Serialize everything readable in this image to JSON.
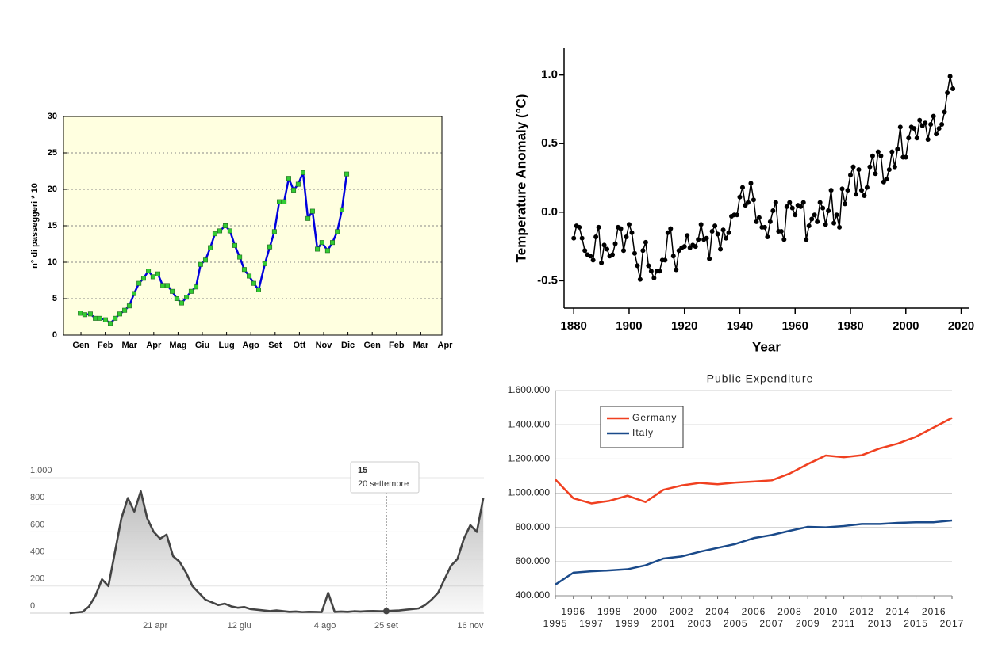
{
  "chart_data": [
    {
      "type": "line",
      "ylabel": "n° di passeggeri * 10",
      "x": [
        -0.03,
        0.16,
        0.39,
        0.59,
        0.78,
        1.01,
        1.21,
        1.41,
        1.6,
        1.8,
        1.99,
        2.19,
        2.39,
        2.58,
        2.78,
        2.97,
        3.17,
        3.37,
        3.56,
        3.76,
        3.95,
        4.15,
        4.35,
        4.54,
        4.74,
        4.93,
        5.13,
        5.33,
        5.52,
        5.72,
        5.95,
        6.14,
        6.34,
        6.54,
        6.73,
        6.93,
        7.12,
        7.32,
        7.58,
        7.78,
        7.97,
        8.17,
        8.37,
        8.56,
        8.76,
        8.95,
        9.15,
        9.35,
        9.54,
        9.74,
        9.93,
        10.16,
        10.36,
        10.56,
        10.75,
        10.95
      ],
      "values": [
        3.0,
        2.8,
        2.9,
        2.3,
        2.3,
        2.1,
        1.6,
        2.3,
        2.9,
        3.4,
        4.0,
        5.7,
        7.1,
        7.8,
        8.8,
        8.0,
        8.4,
        6.8,
        6.8,
        6.0,
        5.0,
        4.4,
        5.2,
        6.0,
        6.6,
        9.7,
        10.3,
        12.0,
        13.9,
        14.3,
        15.0,
        14.3,
        12.3,
        10.7,
        9.0,
        8.1,
        7.1,
        6.2,
        9.8,
        12.1,
        14.2,
        18.3,
        18.3,
        21.5,
        19.9,
        20.7,
        22.3,
        16.0,
        17.0,
        11.8,
        12.7,
        11.6,
        12.7,
        14.2,
        17.2,
        22.1
      ],
      "xlim": [
        -0.72,
        14.87
      ],
      "xticks": [
        {
          "value": 0,
          "label": "Gen"
        },
        {
          "value": 1,
          "label": "Feb"
        },
        {
          "value": 2,
          "label": "Mar"
        },
        {
          "value": 3,
          "label": "Apr"
        },
        {
          "value": 4,
          "label": "Mag"
        },
        {
          "value": 5,
          "label": "Giu"
        },
        {
          "value": 6,
          "label": "Lug"
        },
        {
          "value": 7,
          "label": "Ago"
        },
        {
          "value": 8,
          "label": "Set"
        },
        {
          "value": 9,
          "label": "Ott"
        },
        {
          "value": 10,
          "label": "Nov"
        },
        {
          "value": 11,
          "label": "Dic"
        },
        {
          "value": 12,
          "label": "Gen"
        },
        {
          "value": 13,
          "label": "Feb"
        },
        {
          "value": 14,
          "label": "Mar"
        },
        {
          "value": 15,
          "label": "Apr"
        }
      ],
      "ylim": [
        0,
        30
      ],
      "yticks": [
        0,
        5,
        10,
        15,
        20,
        25,
        30
      ],
      "color": "#0000dd",
      "marker_color": "#33cc33",
      "marker": "square",
      "background": "#ffffe0",
      "grid": true
    },
    {
      "type": "line",
      "xlabel": "Year",
      "ylabel": "Temperature Anomaly (°C)",
      "x": [
        1880,
        1881,
        1882,
        1883,
        1884,
        1885,
        1886,
        1887,
        1888,
        1889,
        1890,
        1891,
        1892,
        1893,
        1894,
        1895,
        1896,
        1897,
        1898,
        1899,
        1900,
        1901,
        1902,
        1903,
        1904,
        1905,
        1906,
        1907,
        1908,
        1909,
        1910,
        1911,
        1912,
        1913,
        1914,
        1915,
        1916,
        1917,
        1918,
        1919,
        1920,
        1921,
        1922,
        1923,
        1924,
        1925,
        1926,
        1927,
        1928,
        1929,
        1930,
        1931,
        1932,
        1933,
        1934,
        1935,
        1936,
        1937,
        1938,
        1939,
        1940,
        1941,
        1942,
        1943,
        1944,
        1945,
        1946,
        1947,
        1948,
        1949,
        1950,
        1951,
        1952,
        1953,
        1954,
        1955,
        1956,
        1957,
        1958,
        1959,
        1960,
        1961,
        1962,
        1963,
        1964,
        1965,
        1966,
        1967,
        1968,
        1969,
        1970,
        1971,
        1972,
        1973,
        1974,
        1975,
        1976,
        1977,
        1978,
        1979,
        1980,
        1981,
        1982,
        1983,
        1984,
        1985,
        1986,
        1987,
        1988,
        1989,
        1990,
        1991,
        1992,
        1993,
        1994,
        1995,
        1996,
        1997,
        1998,
        1999,
        2000,
        2001,
        2002,
        2003,
        2004,
        2005,
        2006,
        2007,
        2008,
        2009,
        2010,
        2011,
        2012,
        2013,
        2014,
        2015,
        2016,
        2017
      ],
      "values": [
        -0.19,
        -0.1,
        -0.11,
        -0.19,
        -0.28,
        -0.31,
        -0.32,
        -0.35,
        -0.18,
        -0.11,
        -0.37,
        -0.24,
        -0.27,
        -0.32,
        -0.31,
        -0.23,
        -0.11,
        -0.12,
        -0.28,
        -0.18,
        -0.09,
        -0.15,
        -0.3,
        -0.39,
        -0.49,
        -0.28,
        -0.22,
        -0.39,
        -0.43,
        -0.48,
        -0.43,
        -0.43,
        -0.35,
        -0.35,
        -0.15,
        -0.12,
        -0.32,
        -0.42,
        -0.28,
        -0.26,
        -0.25,
        -0.17,
        -0.26,
        -0.24,
        -0.25,
        -0.2,
        -0.09,
        -0.2,
        -0.19,
        -0.34,
        -0.14,
        -0.1,
        -0.16,
        -0.27,
        -0.13,
        -0.19,
        -0.15,
        -0.03,
        -0.02,
        -0.02,
        0.11,
        0.18,
        0.05,
        0.07,
        0.21,
        0.09,
        -0.07,
        -0.04,
        -0.11,
        -0.11,
        -0.18,
        -0.07,
        0.01,
        0.07,
        -0.14,
        -0.14,
        -0.2,
        0.04,
        0.07,
        0.03,
        -0.02,
        0.05,
        0.04,
        0.07,
        -0.2,
        -0.1,
        -0.05,
        -0.02,
        -0.07,
        0.07,
        0.03,
        -0.09,
        0.01,
        0.16,
        -0.08,
        -0.02,
        -0.11,
        0.17,
        0.06,
        0.16,
        0.27,
        0.33,
        0.13,
        0.31,
        0.16,
        0.12,
        0.18,
        0.33,
        0.41,
        0.28,
        0.44,
        0.41,
        0.22,
        0.24,
        0.31,
        0.44,
        0.33,
        0.46,
        0.62,
        0.4,
        0.4,
        0.54,
        0.62,
        0.61,
        0.54,
        0.67,
        0.63,
        0.65,
        0.53,
        0.64,
        0.7,
        0.57,
        0.61,
        0.64,
        0.73,
        0.87,
        0.99,
        0.9
      ],
      "xlim": [
        1876.5,
        2023
      ],
      "xticks": [
        1880,
        1900,
        1920,
        1940,
        1960,
        1980,
        2000,
        2020
      ],
      "ylim": [
        -0.7,
        1.2
      ],
      "yticks": [
        -0.5,
        {
          "value": 0,
          "label": "0.0"
        },
        0.5,
        {
          "value": 1,
          "label": "1.0"
        }
      ],
      "color": "#000000",
      "marker_color": "#000000",
      "marker": "circle",
      "grid": false
    },
    {
      "type": "area",
      "x": [
        58,
        62,
        66,
        70,
        74,
        78,
        82,
        86,
        90,
        94,
        98,
        102,
        106,
        110,
        114,
        118,
        122,
        126,
        130,
        134,
        138,
        142,
        146,
        150,
        154,
        158,
        162,
        166,
        170,
        174,
        178,
        182,
        186,
        190,
        194,
        198,
        202,
        206,
        210,
        214,
        218,
        222,
        226,
        230,
        234,
        238,
        242,
        246,
        250,
        254,
        258,
        262,
        266,
        270,
        274,
        278,
        282,
        286,
        290,
        294,
        298,
        302,
        306,
        310,
        314
      ],
      "values": [
        0,
        5,
        10,
        50,
        130,
        250,
        200,
        450,
        700,
        850,
        750,
        900,
        700,
        600,
        550,
        580,
        420,
        380,
        300,
        200,
        150,
        100,
        80,
        60,
        70,
        50,
        40,
        45,
        30,
        25,
        20,
        15,
        20,
        15,
        10,
        12,
        8,
        10,
        9,
        8,
        150,
        10,
        12,
        10,
        14,
        12,
        15,
        16,
        14,
        15,
        18,
        20,
        25,
        30,
        35,
        60,
        100,
        150,
        250,
        350,
        400,
        550,
        650,
        600,
        850
      ],
      "xlim": [
        57.6,
        314.4
      ],
      "xticks": [
        {
          "value": 111,
          "label": "21 apr"
        },
        {
          "value": 163,
          "label": "12 giu"
        },
        {
          "value": 216,
          "label": "4 ago"
        },
        {
          "value": 254,
          "label": "25 set"
        },
        {
          "value": 306,
          "label": "16 nov"
        }
      ],
      "ylim": [
        0,
        1000
      ],
      "yticks": [
        0,
        200,
        400,
        600,
        800,
        {
          "value": 1000,
          "label": "1.000"
        }
      ],
      "color": "#444444",
      "grid": true,
      "tooltip": {
        "x": 254,
        "value": 15,
        "date": "20 settembre"
      }
    },
    {
      "type": "line",
      "title": "Public Expenditure",
      "x": [
        1995,
        1996,
        1997,
        1998,
        1999,
        2000,
        2001,
        2002,
        2003,
        2004,
        2005,
        2006,
        2007,
        2008,
        2009,
        2010,
        2011,
        2012,
        2013,
        2014,
        2015,
        2016,
        2017
      ],
      "series": [
        {
          "name": "Germany",
          "color": "#f04020",
          "values": [
            1080000,
            970000,
            940000,
            955000,
            985000,
            948000,
            1020000,
            1045000,
            1060000,
            1052000,
            1062000,
            1068000,
            1075000,
            1115000,
            1170000,
            1220000,
            1210000,
            1222000,
            1262000,
            1290000,
            1330000,
            1385000,
            1440000
          ]
        },
        {
          "name": "Italy",
          "color": "#1a4a8a",
          "values": [
            465000,
            535000,
            543000,
            548000,
            555000,
            578000,
            618000,
            630000,
            657000,
            680000,
            703000,
            737000,
            755000,
            780000,
            803000,
            800000,
            808000,
            820000,
            820000,
            826000,
            830000,
            830000,
            840000
          ]
        }
      ],
      "xlim": [
        1995,
        2017
      ],
      "xticks": [
        1995,
        1996,
        1997,
        1998,
        1999,
        2000,
        2001,
        2002,
        2003,
        2004,
        2005,
        2006,
        2007,
        2008,
        2009,
        2010,
        2011,
        2012,
        2013,
        2014,
        2015,
        2016,
        2017
      ],
      "ylim": [
        400000,
        1600000
      ],
      "yticks": [
        {
          "value": 400000,
          "label": "400.000"
        },
        {
          "value": 600000,
          "label": "600.000"
        },
        {
          "value": 800000,
          "label": "800.000"
        },
        {
          "value": 1000000,
          "label": "1.000.000"
        },
        {
          "value": 1200000,
          "label": "1.200.000"
        },
        {
          "value": 1400000,
          "label": "1.400.000"
        },
        {
          "value": 1600000,
          "label": "1.600.000"
        }
      ],
      "grid": true,
      "legend": "upper left"
    }
  ]
}
